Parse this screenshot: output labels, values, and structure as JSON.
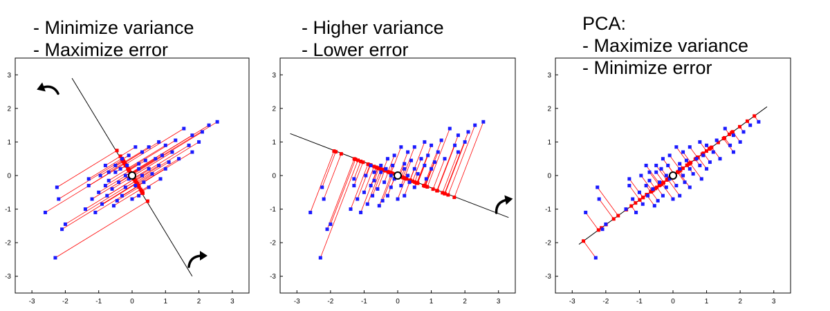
{
  "chart_data": [
    {
      "type": "scatter",
      "captions": [
        "- Minimize variance",
        "- Maximize error"
      ],
      "xlim": [
        -3.5,
        3.5
      ],
      "ylim": [
        -3.5,
        3.5
      ],
      "xticks": [
        "-3",
        "-2",
        "-1",
        "0",
        "1",
        "2",
        "3"
      ],
      "yticks": [
        "3",
        "2",
        "1",
        "0",
        "-1",
        "-2",
        "-3"
      ],
      "center": [
        0,
        0
      ],
      "axis_line": {
        "from": [
          -1.8,
          2.9
        ],
        "to": [
          1.8,
          -3.0
        ]
      },
      "rotation_arrows": 2,
      "points": [
        [
          -2.6,
          -1.1
        ],
        [
          -2.3,
          -2.45
        ],
        [
          -2.25,
          -0.35
        ],
        [
          -2.2,
          -0.7
        ],
        [
          -2.1,
          -1.6
        ],
        [
          -2.0,
          -1.45
        ],
        [
          -1.4,
          -1.0
        ],
        [
          -1.3,
          -0.1
        ],
        [
          -1.3,
          -0.3
        ],
        [
          -1.2,
          -0.7
        ],
        [
          -1.1,
          -1.1
        ],
        [
          -1.0,
          -0.5
        ],
        [
          -0.95,
          0.0
        ],
        [
          -0.9,
          -0.85
        ],
        [
          -0.8,
          -0.3
        ],
        [
          -0.8,
          0.3
        ],
        [
          -0.75,
          -0.6
        ],
        [
          -0.7,
          -0.15
        ],
        [
          -0.7,
          0.1
        ],
        [
          -0.6,
          -0.4
        ],
        [
          -0.55,
          -0.9
        ],
        [
          -0.5,
          0.1
        ],
        [
          -0.5,
          0.3
        ],
        [
          -0.45,
          -0.75
        ],
        [
          -0.4,
          -0.2
        ],
        [
          -0.35,
          0.2
        ],
        [
          -0.3,
          -0.6
        ],
        [
          -0.3,
          0.5
        ],
        [
          -0.2,
          -0.35
        ],
        [
          -0.2,
          0.0
        ],
        [
          -0.15,
          0.3
        ],
        [
          -0.1,
          0.6
        ],
        [
          -0.1,
          -0.1
        ],
        [
          0.0,
          -0.7
        ],
        [
          0.1,
          0.85
        ],
        [
          0.1,
          -0.3
        ],
        [
          0.2,
          0.2
        ],
        [
          0.2,
          0.35
        ],
        [
          0.2,
          -0.6
        ],
        [
          0.3,
          0.0
        ],
        [
          0.3,
          0.7
        ],
        [
          0.35,
          -0.2
        ],
        [
          0.4,
          0.45
        ],
        [
          0.5,
          0.2
        ],
        [
          0.5,
          0.85
        ],
        [
          0.5,
          -0.35
        ],
        [
          0.6,
          0.05
        ],
        [
          0.7,
          0.5
        ],
        [
          0.8,
          0.3
        ],
        [
          0.8,
          1.0
        ],
        [
          0.85,
          -0.1
        ],
        [
          0.9,
          0.6
        ],
        [
          1.0,
          0.9
        ],
        [
          1.0,
          0.2
        ],
        [
          1.1,
          0.4
        ],
        [
          1.2,
          0.7
        ],
        [
          1.3,
          1.05
        ],
        [
          1.4,
          0.5
        ],
        [
          1.55,
          1.4
        ],
        [
          1.7,
          0.9
        ],
        [
          1.8,
          1.2
        ],
        [
          1.8,
          0.7
        ],
        [
          2.0,
          1.0
        ],
        [
          2.1,
          1.3
        ],
        [
          2.3,
          1.5
        ],
        [
          2.55,
          1.6
        ]
      ]
    },
    {
      "type": "scatter",
      "captions": [
        "- Higher variance",
        "- Lower error"
      ],
      "xlim": [
        -3.5,
        3.5
      ],
      "ylim": [
        -3.5,
        3.5
      ],
      "xticks": [
        "-3",
        "-2",
        "-1",
        "0",
        "1",
        "2",
        "3"
      ],
      "yticks": [
        "3",
        "2",
        "1",
        "0",
        "-1",
        "-2",
        "-3"
      ],
      "center": [
        0,
        0
      ],
      "axis_line": {
        "from": [
          -3.2,
          1.25
        ],
        "to": [
          3.3,
          -1.25
        ]
      },
      "rotation_arrows": 1,
      "points": [
        [
          -2.6,
          -1.1
        ],
        [
          -2.3,
          -2.45
        ],
        [
          -2.25,
          -0.35
        ],
        [
          -2.2,
          -0.7
        ],
        [
          -2.1,
          -1.6
        ],
        [
          -2.0,
          -1.45
        ],
        [
          -1.4,
          -1.0
        ],
        [
          -1.3,
          -0.1
        ],
        [
          -1.3,
          -0.3
        ],
        [
          -1.2,
          -0.7
        ],
        [
          -1.1,
          -1.1
        ],
        [
          -1.0,
          -0.5
        ],
        [
          -0.95,
          0.0
        ],
        [
          -0.9,
          -0.85
        ],
        [
          -0.8,
          -0.3
        ],
        [
          -0.8,
          0.3
        ],
        [
          -0.75,
          -0.6
        ],
        [
          -0.7,
          -0.15
        ],
        [
          -0.7,
          0.1
        ],
        [
          -0.6,
          -0.4
        ],
        [
          -0.55,
          -0.9
        ],
        [
          -0.5,
          0.1
        ],
        [
          -0.5,
          0.3
        ],
        [
          -0.45,
          -0.75
        ],
        [
          -0.4,
          -0.2
        ],
        [
          -0.35,
          0.2
        ],
        [
          -0.3,
          -0.6
        ],
        [
          -0.3,
          0.5
        ],
        [
          -0.2,
          -0.35
        ],
        [
          -0.2,
          0.0
        ],
        [
          -0.15,
          0.3
        ],
        [
          -0.1,
          0.6
        ],
        [
          -0.1,
          -0.1
        ],
        [
          0.0,
          -0.7
        ],
        [
          0.1,
          0.85
        ],
        [
          0.1,
          -0.3
        ],
        [
          0.2,
          0.2
        ],
        [
          0.2,
          0.35
        ],
        [
          0.2,
          -0.6
        ],
        [
          0.3,
          0.0
        ],
        [
          0.3,
          0.7
        ],
        [
          0.35,
          -0.2
        ],
        [
          0.4,
          0.45
        ],
        [
          0.5,
          0.2
        ],
        [
          0.5,
          0.85
        ],
        [
          0.5,
          -0.35
        ],
        [
          0.6,
          0.05
        ],
        [
          0.7,
          0.5
        ],
        [
          0.8,
          0.3
        ],
        [
          0.8,
          1.0
        ],
        [
          0.85,
          -0.1
        ],
        [
          0.9,
          0.6
        ],
        [
          1.0,
          0.9
        ],
        [
          1.0,
          0.2
        ],
        [
          1.1,
          0.4
        ],
        [
          1.2,
          0.7
        ],
        [
          1.3,
          1.05
        ],
        [
          1.4,
          0.5
        ],
        [
          1.55,
          1.4
        ],
        [
          1.7,
          0.9
        ],
        [
          1.8,
          1.2
        ],
        [
          1.8,
          0.7
        ],
        [
          2.0,
          1.0
        ],
        [
          2.1,
          1.3
        ],
        [
          2.3,
          1.5
        ],
        [
          2.55,
          1.6
        ]
      ]
    },
    {
      "type": "scatter",
      "captions": [
        "PCA:",
        "- Maximize variance",
        "- Minimize error"
      ],
      "xlim": [
        -3.5,
        3.5
      ],
      "ylim": [
        -3.5,
        3.5
      ],
      "xticks": [
        "-3",
        "-2",
        "-1",
        "0",
        "1",
        "2",
        "3"
      ],
      "yticks": [
        "3",
        "2",
        "1",
        "0",
        "-1",
        "-2",
        "-3"
      ],
      "center": [
        0,
        0
      ],
      "axis_line": {
        "from": [
          -2.8,
          -2.05
        ],
        "to": [
          2.8,
          2.05
        ]
      },
      "rotation_arrows": 0,
      "points": [
        [
          -2.6,
          -1.1
        ],
        [
          -2.3,
          -2.45
        ],
        [
          -2.25,
          -0.35
        ],
        [
          -2.2,
          -0.7
        ],
        [
          -2.1,
          -1.6
        ],
        [
          -2.0,
          -1.45
        ],
        [
          -1.4,
          -1.0
        ],
        [
          -1.3,
          -0.1
        ],
        [
          -1.3,
          -0.3
        ],
        [
          -1.2,
          -0.7
        ],
        [
          -1.1,
          -1.1
        ],
        [
          -1.0,
          -0.5
        ],
        [
          -0.95,
          0.0
        ],
        [
          -0.9,
          -0.85
        ],
        [
          -0.8,
          -0.3
        ],
        [
          -0.8,
          0.3
        ],
        [
          -0.75,
          -0.6
        ],
        [
          -0.7,
          -0.15
        ],
        [
          -0.7,
          0.1
        ],
        [
          -0.6,
          -0.4
        ],
        [
          -0.55,
          -0.9
        ],
        [
          -0.5,
          0.1
        ],
        [
          -0.5,
          0.3
        ],
        [
          -0.45,
          -0.75
        ],
        [
          -0.4,
          -0.2
        ],
        [
          -0.35,
          0.2
        ],
        [
          -0.3,
          -0.6
        ],
        [
          -0.3,
          0.5
        ],
        [
          -0.2,
          -0.35
        ],
        [
          -0.2,
          0.0
        ],
        [
          -0.15,
          0.3
        ],
        [
          -0.1,
          0.6
        ],
        [
          -0.1,
          -0.1
        ],
        [
          0.0,
          -0.7
        ],
        [
          0.1,
          0.85
        ],
        [
          0.1,
          -0.3
        ],
        [
          0.2,
          0.2
        ],
        [
          0.2,
          0.35
        ],
        [
          0.2,
          -0.6
        ],
        [
          0.3,
          0.0
        ],
        [
          0.3,
          0.7
        ],
        [
          0.35,
          -0.2
        ],
        [
          0.4,
          0.45
        ],
        [
          0.5,
          0.2
        ],
        [
          0.5,
          0.85
        ],
        [
          0.5,
          -0.35
        ],
        [
          0.6,
          0.05
        ],
        [
          0.7,
          0.5
        ],
        [
          0.8,
          0.3
        ],
        [
          0.8,
          1.0
        ],
        [
          0.85,
          -0.1
        ],
        [
          0.9,
          0.6
        ],
        [
          1.0,
          0.9
        ],
        [
          1.0,
          0.2
        ],
        [
          1.1,
          0.4
        ],
        [
          1.2,
          0.7
        ],
        [
          1.3,
          1.05
        ],
        [
          1.4,
          0.5
        ],
        [
          1.55,
          1.4
        ],
        [
          1.7,
          0.9
        ],
        [
          1.8,
          1.2
        ],
        [
          1.8,
          0.7
        ],
        [
          2.0,
          1.0
        ],
        [
          2.1,
          1.3
        ],
        [
          2.3,
          1.5
        ],
        [
          2.55,
          1.6
        ]
      ]
    }
  ],
  "colors": {
    "points": "#1a1aff",
    "projections": "#ff0000",
    "axis_line": "#000000",
    "center_marker": "#ffffff",
    "frame": "#000000"
  }
}
